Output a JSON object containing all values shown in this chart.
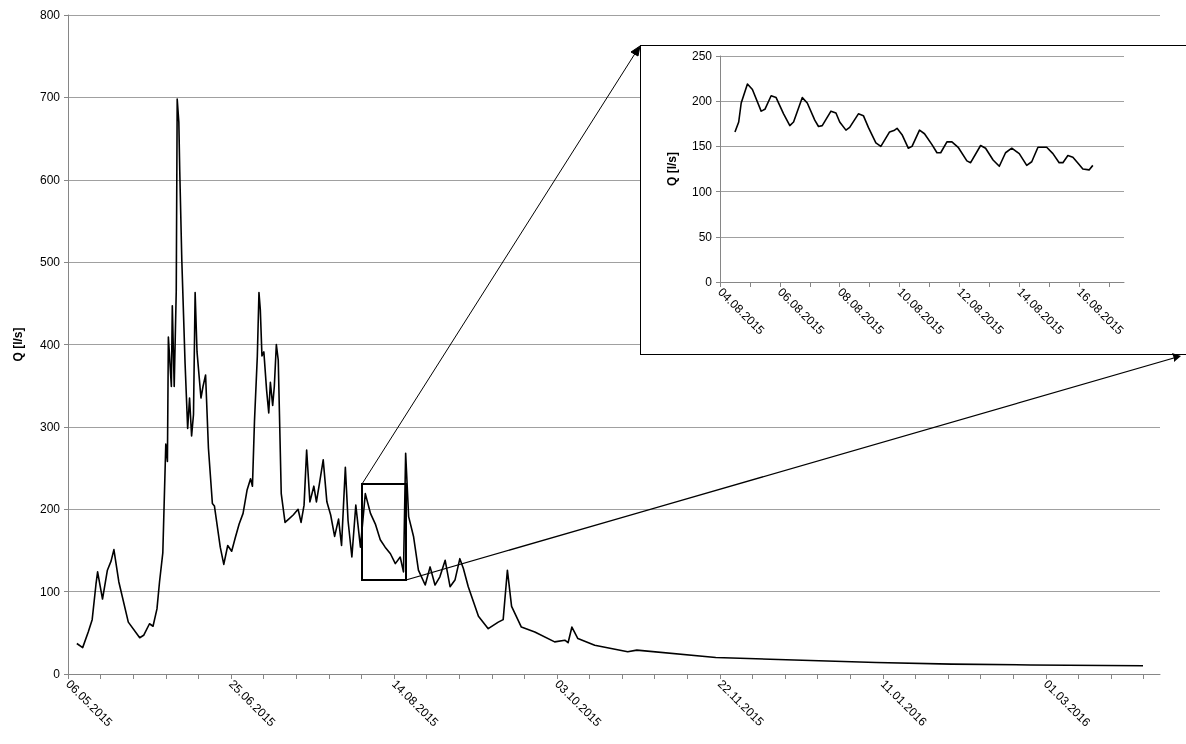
{
  "chart_data": [
    {
      "type": "line",
      "ylabel": "Q [l/s]",
      "grid": "y",
      "marker": "none",
      "line_style": "solid",
      "xlim": [
        "2015-05-06",
        "2016-04-05"
      ],
      "ylim": [
        0,
        800
      ],
      "yticks": [
        0,
        100,
        200,
        300,
        400,
        500,
        600,
        700,
        800
      ],
      "xticks": [
        {
          "value": "2015-05-06",
          "label": "06.05.2015"
        },
        {
          "value": "2015-05-16",
          "label": null
        },
        {
          "value": "2015-05-26",
          "label": null
        },
        {
          "value": "2015-06-05",
          "label": null
        },
        {
          "value": "2015-06-15",
          "label": null
        },
        {
          "value": "2015-06-25",
          "label": "25.06.2015"
        },
        {
          "value": "2015-07-05",
          "label": null
        },
        {
          "value": "2015-07-15",
          "label": null
        },
        {
          "value": "2015-07-25",
          "label": null
        },
        {
          "value": "2015-08-04",
          "label": null
        },
        {
          "value": "2015-08-14",
          "label": "14.08.2015"
        },
        {
          "value": "2015-08-24",
          "label": null
        },
        {
          "value": "2015-09-03",
          "label": null
        },
        {
          "value": "2015-09-13",
          "label": null
        },
        {
          "value": "2015-09-23",
          "label": null
        },
        {
          "value": "2015-10-03",
          "label": "03.10.2015"
        },
        {
          "value": "2015-10-13",
          "label": null
        },
        {
          "value": "2015-10-23",
          "label": null
        },
        {
          "value": "2015-11-02",
          "label": null
        },
        {
          "value": "2015-11-12",
          "label": null
        },
        {
          "value": "2015-11-22",
          "label": "22.11.2015"
        },
        {
          "value": "2015-12-02",
          "label": null
        },
        {
          "value": "2015-12-12",
          "label": null
        },
        {
          "value": "2015-12-22",
          "label": null
        },
        {
          "value": "2016-01-01",
          "label": null
        },
        {
          "value": "2016-01-11",
          "label": "11.01.2016"
        },
        {
          "value": "2016-01-21",
          "label": null
        },
        {
          "value": "2016-01-31",
          "label": null
        },
        {
          "value": "2016-02-10",
          "label": null
        },
        {
          "value": "2016-02-20",
          "label": null
        },
        {
          "value": "2016-03-01",
          "label": "01.03.2016"
        },
        {
          "value": "2016-03-11",
          "label": null
        },
        {
          "value": "2016-03-21",
          "label": null
        },
        {
          "value": "2016-03-31",
          "label": null
        }
      ],
      "x": [
        "2015-05-08T17:00",
        "2015-05-10T12:00",
        "2015-05-12T05:00",
        "2015-05-13T10:00",
        "2015-05-14T14:00",
        "2015-05-15T02:00",
        "2015-05-16T14:00",
        "2015-05-18T02:00",
        "2015-05-19T05:00",
        "2015-05-20T02:00",
        "2015-05-21T14:00",
        "2015-05-24T12:00",
        "2015-05-28T00:00",
        "2015-05-29T05:00",
        "2015-05-31T00:00",
        "2015-06-01T02:00",
        "2015-06-02T07:00",
        "2015-06-03T02:00",
        "2015-06-04T02:00",
        "2015-06-05T00:00",
        "2015-06-05T12:00",
        "2015-06-05T19:00",
        "2015-06-06T17:00",
        "2015-06-07T00:00",
        "2015-06-07T14:00",
        "2015-06-08T05:00",
        "2015-06-08T12:00",
        "2015-06-09T00:00",
        "2015-06-09T07:00",
        "2015-06-09T22:00",
        "2015-06-10T22:00",
        "2015-06-11T17:00",
        "2015-06-12T07:00",
        "2015-06-12T22:00",
        "2015-06-13T12:00",
        "2015-06-14T00:00",
        "2015-06-14T14:00",
        "2015-06-15T19:00",
        "2015-06-16T10:00",
        "2015-06-17T05:00",
        "2015-06-18T02:00",
        "2015-06-19T07:00",
        "2015-06-19T22:00",
        "2015-06-21T17:00",
        "2015-06-22T19:00",
        "2015-06-24T00:00",
        "2015-06-25T05:00",
        "2015-06-26T07:00",
        "2015-06-27T12:00",
        "2015-06-28T17:00",
        "2015-06-29T22:00",
        "2015-07-01T00:00",
        "2015-07-01T14:00",
        "2015-07-02T05:00",
        "2015-07-03T02:00",
        "2015-07-03T14:00",
        "2015-07-04T00:00",
        "2015-07-04T12:00",
        "2015-07-05T02:00",
        "2015-07-05T22:00",
        "2015-07-06T14:00",
        "2015-07-07T02:00",
        "2015-07-07T19:00",
        "2015-07-08T07:00",
        "2015-07-08T22:00",
        "2015-07-09T12:00",
        "2015-07-10T10:00",
        "2015-07-11T14:00",
        "2015-07-12T17:00",
        "2015-07-14T02:00",
        "2015-07-15T14:00",
        "2015-07-16T12:00",
        "2015-07-17T10:00",
        "2015-07-18T05:00",
        "2015-07-19T05:00",
        "2015-07-20T10:00",
        "2015-07-21T05:00",
        "2015-07-22T02:00",
        "2015-07-23T07:00",
        "2015-07-24T10:00",
        "2015-07-25T14:00",
        "2015-07-26T19:00",
        "2015-07-28T00:00",
        "2015-07-28T22:00",
        "2015-07-30T02:00",
        "2015-07-30T22:00",
        "2015-08-01T02:00",
        "2015-08-02T07:00",
        "2015-08-03T17:00",
        "2015-08-05T05:00",
        "2015-08-06T19:00",
        "2015-08-08T07:00",
        "2015-08-09T19:00",
        "2015-08-11T07:00",
        "2015-08-12T22:00",
        "2015-08-14T10:00",
        "2015-08-15T22:00",
        "2015-08-16T22:00",
        "2015-08-17T14:00",
        "2015-08-18T12:00",
        "2015-08-20T00:00",
        "2015-08-21T12:00",
        "2015-08-23T14:00",
        "2015-08-25T02:00",
        "2015-08-26T14:00",
        "2015-08-28T02:00",
        "2015-08-29T17:00",
        "2015-08-31T05:00",
        "2015-09-01T17:00",
        "2015-09-03T05:00",
        "2015-09-04T07:00",
        "2015-09-05T19:00",
        "2015-09-08T22:00",
        "2015-09-11T22:00",
        "2015-09-15T00:00",
        "2015-09-16T12:00",
        "2015-09-17T19:00",
        "2015-09-19T02:00",
        "2015-09-22T02:00",
        "2015-09-26T05:00",
        "2015-10-02T07:00",
        "2015-10-05T10:00",
        "2015-10-06T10:00",
        "2015-10-07T14:00",
        "2015-10-09T10:00",
        "2015-10-14T14:00",
        "2015-10-24T17:00",
        "2015-10-27T12:00",
        "2015-11-20T17:00",
        "2015-12-14T19:00",
        "2016-01-08T22:00",
        "2016-02-01T02:00",
        "2016-02-25T07:00",
        "2016-03-30T19:00"
      ],
      "series": [
        {
          "color": "#000000",
          "values": [
            37,
            32,
            51,
            66,
            109,
            124,
            91,
            126,
            137,
            151,
            112,
            63,
            44,
            47,
            61,
            58,
            79,
            112,
            147,
            279,
            258,
            409,
            349,
            447,
            349,
            465,
            698,
            670,
            609,
            502,
            377,
            298,
            335,
            289,
            315,
            463,
            391,
            335,
            349,
            363,
            274,
            207,
            204,
            154,
            133,
            156,
            149,
            165,
            182,
            195,
            223,
            237,
            228,
            307,
            386,
            463,
            442,
            386,
            391,
            345,
            317,
            354,
            326,
            349,
            400,
            381,
            219,
            184,
            188,
            193,
            200,
            184,
            205,
            272,
            209,
            228,
            209,
            230,
            260,
            209,
            193,
            167,
            188,
            156,
            251,
            186,
            142,
            205,
            154,
            219,
            195,
            182,
            163,
            154,
            146,
            134,
            142,
            124,
            268,
            191,
            167,
            126,
            108,
            130,
            108,
            118,
            138,
            106,
            114,
            140,
            128,
            106,
            70,
            55,
            63,
            66,
            126,
            82,
            57,
            51,
            39,
            41,
            38,
            57,
            43,
            35,
            27,
            29,
            20,
            17,
            14,
            12,
            11,
            10
          ]
        }
      ]
    },
    {
      "type": "line",
      "ylabel": "Q [l/s]",
      "grid": "y",
      "marker": "none",
      "line_style": "solid",
      "xlim": [
        "2015-08-04",
        "2015-08-17T12:00"
      ],
      "ylim": [
        0,
        250
      ],
      "yticks": [
        0,
        50,
        100,
        150,
        200,
        250
      ],
      "xticks": [
        {
          "value": "2015-08-04",
          "label": "04.08.2015"
        },
        {
          "value": "2015-08-05",
          "label": null
        },
        {
          "value": "2015-08-06",
          "label": "06.08.2015"
        },
        {
          "value": "2015-08-07",
          "label": null
        },
        {
          "value": "2015-08-08",
          "label": "08.08.2015"
        },
        {
          "value": "2015-08-09",
          "label": null
        },
        {
          "value": "2015-08-10",
          "label": "10.08.2015"
        },
        {
          "value": "2015-08-11",
          "label": null
        },
        {
          "value": "2015-08-12",
          "label": "12.08.2015"
        },
        {
          "value": "2015-08-13",
          "label": null
        },
        {
          "value": "2015-08-14",
          "label": "14.08.2015"
        },
        {
          "value": "2015-08-15",
          "label": null
        },
        {
          "value": "2015-08-16",
          "label": "16.08.2015"
        },
        {
          "value": "2015-08-17",
          "label": null
        }
      ],
      "x": [
        "2015-08-04T12:00",
        "2015-08-04T15:00",
        "2015-08-04T17:00",
        "2015-08-04T22:00",
        "2015-08-05T02:00",
        "2015-08-05T09:00",
        "2015-08-05T12:00",
        "2015-08-05T17:00",
        "2015-08-05T21:00",
        "2015-08-06T03:00",
        "2015-08-06T08:00",
        "2015-08-06T11:00",
        "2015-08-06T18:00",
        "2015-08-06T22:00",
        "2015-08-07T04:00",
        "2015-08-07T07:00",
        "2015-08-07T10:00",
        "2015-08-07T17:00",
        "2015-08-07T21:00",
        "2015-08-08T00:00",
        "2015-08-08T05:00",
        "2015-08-08T08:00",
        "2015-08-08T15:00",
        "2015-08-08T19:00",
        "2015-08-08T23:00",
        "2015-08-09T05:00",
        "2015-08-09T09:00",
        "2015-08-09T16:00",
        "2015-08-09T20:00",
        "2015-08-09T22:00",
        "2015-08-10T02:00",
        "2015-08-10T07:00",
        "2015-08-10T10:00",
        "2015-08-10T16:00",
        "2015-08-10T20:00",
        "2015-08-11T02:00",
        "2015-08-11T06:00",
        "2015-08-11T09:00",
        "2015-08-11T14:00",
        "2015-08-11T18:00",
        "2015-08-11T23:00",
        "2015-08-12T06:00",
        "2015-08-12T09:00",
        "2015-08-12T17:00",
        "2015-08-12T21:00",
        "2015-08-13T03:00",
        "2015-08-13T08:00",
        "2015-08-13T13:00",
        "2015-08-13T18:00",
        "2015-08-14T00:00",
        "2015-08-14T06:00",
        "2015-08-14T10:00",
        "2015-08-14T15:00",
        "2015-08-14T22:00",
        "2015-08-15T03:00",
        "2015-08-15T08:00",
        "2015-08-15T11:00",
        "2015-08-15T15:00",
        "2015-08-15T19:00",
        "2015-08-16T00:00",
        "2015-08-16T03:00",
        "2015-08-16T08:00",
        "2015-08-16T11:00"
      ],
      "series": [
        {
          "color": "#000000",
          "values": [
            166,
            177,
            198,
            219,
            213,
            189,
            191,
            206,
            204,
            186,
            173,
            177,
            204,
            198,
            179,
            172,
            173,
            189,
            187,
            177,
            168,
            171,
            186,
            184,
            171,
            154,
            150,
            166,
            168,
            170,
            163,
            148,
            150,
            168,
            164,
            152,
            143,
            143,
            155,
            155,
            149,
            134,
            132,
            151,
            148,
            135,
            128,
            143,
            148,
            142,
            129,
            133,
            149,
            149,
            142,
            132,
            132,
            140,
            138,
            130,
            125,
            124,
            129
          ]
        }
      ]
    }
  ]
}
